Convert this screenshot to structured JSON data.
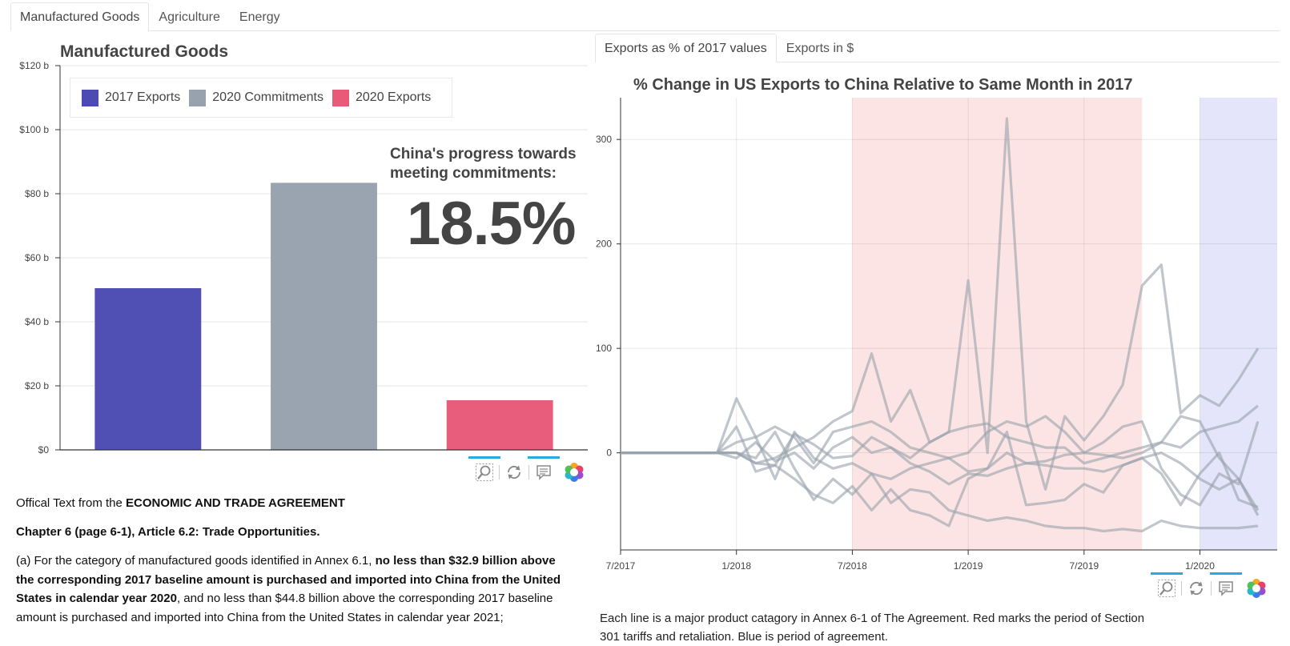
{
  "tabs": {
    "top": [
      "Manufactured Goods",
      "Agriculture",
      "Energy"
    ],
    "active_top": 0,
    "right": [
      "Exports as % of 2017 values",
      "Exports in $"
    ],
    "active_right": 0
  },
  "left_panel": {
    "progress_label": "China's progress towards meeting commitments:",
    "progress_value": "18.5%"
  },
  "text": {
    "p1_prefix": "Offical Text from the ",
    "p1_bold": "ECONOMIC AND TRADE AGREEMENT",
    "p2": "Chapter 6 (page 6-1), Article 6.2: Trade Opportunities.",
    "p3_a": "(a) For the category of manufactured goods identified in Annex 6.1, ",
    "p3_b": "no less than $32.9 billion above the corresponding 2017 baseline amount is purchased and imported into China from the United States in calendar year 2020",
    "p3_c": ", and no less than $44.8 billion above the corresponding 2017 baseline amount is purchased and imported into China from the United States in calendar year 2021;",
    "caption": "Each line is a major product catagory in Annex 6-1 of The Agreement. Red marks the period of Section 301 tariffs and retaliation. Blue is period of agreement."
  },
  "icons": {
    "zoom": "zoom-icon",
    "reset": "reset-icon",
    "comment": "comment-icon",
    "logo": "plot-logo-icon"
  },
  "colors": {
    "exports_2017": "#4b4bb3",
    "commitments_2020": "#97a2ae",
    "exports_2020": "#e85a78",
    "tariff_band": "#fde4e4",
    "agreement_band": "#e4e4fa",
    "line": "#9aa3ad",
    "toolbar_accent": "#26aae1"
  },
  "chart_data": [
    {
      "type": "bar",
      "title": "Manufactured Goods",
      "categories": [
        "2017 Exports",
        "2020 Commitments",
        "2020 Exports"
      ],
      "values": [
        50.5,
        83.4,
        15.5
      ],
      "value_unit": "billion $",
      "legend": [
        "2017 Exports",
        "2020 Commitments",
        "2020 Exports"
      ],
      "legend_position": "top-left",
      "y_ticks": [
        "$0",
        "$20 b",
        "$40 b",
        "$60 b",
        "$80 b",
        "$100 b",
        "$120 b"
      ],
      "y_tick_values": [
        0,
        20,
        40,
        60,
        80,
        100,
        120
      ],
      "ylim": [
        0,
        120
      ],
      "grid": true
    },
    {
      "type": "line",
      "title": "% Change in US Exports to China Relative to Same Month in 2017",
      "x_ticks": [
        "7/2017",
        "1/2018",
        "7/2018",
        "1/2019",
        "7/2019",
        "1/2020"
      ],
      "x_tick_months": [
        "2017-07",
        "2018-01",
        "2018-07",
        "2019-01",
        "2019-07",
        "2020-01"
      ],
      "x_range": [
        "2017-07",
        "2020-05"
      ],
      "y_ticks": [
        "0",
        "100",
        "200",
        "300"
      ],
      "y_tick_values": [
        0,
        100,
        200,
        300
      ],
      "ylim": [
        -93,
        340
      ],
      "grid": true,
      "shaded_regions": [
        {
          "from": "2018-07",
          "to": "2019-10",
          "color": "tariff"
        },
        {
          "from": "2020-01",
          "to": "2020-05",
          "color": "agreement"
        }
      ],
      "months": [
        "2017-07",
        "2017-08",
        "2017-09",
        "2017-10",
        "2017-11",
        "2017-12",
        "2018-01",
        "2018-02",
        "2018-03",
        "2018-04",
        "2018-05",
        "2018-06",
        "2018-07",
        "2018-08",
        "2018-09",
        "2018-10",
        "2018-11",
        "2018-12",
        "2019-01",
        "2019-02",
        "2019-03",
        "2019-04",
        "2019-05",
        "2019-06",
        "2019-07",
        "2019-08",
        "2019-09",
        "2019-10",
        "2019-11",
        "2019-12",
        "2020-01",
        "2020-02",
        "2020-03",
        "2020-04"
      ],
      "series": [
        {
          "values": [
            0,
            0,
            0,
            0,
            0,
            0,
            0,
            -10,
            -12,
            18,
            8,
            -5,
            -3,
            15,
            5,
            -10,
            -18,
            -30,
            -20,
            -22,
            -15,
            -10,
            -8,
            -2,
            0,
            -2,
            -5,
            0,
            10,
            5,
            20,
            25,
            30,
            45
          ]
        },
        {
          "values": [
            0,
            0,
            0,
            0,
            0,
            0,
            52,
            15,
            -25,
            20,
            -5,
            -15,
            -10,
            -20,
            -25,
            -15,
            -10,
            -5,
            -18,
            -15,
            0,
            -10,
            -12,
            -15,
            -15,
            -18,
            -12,
            -5,
            -20,
            -50,
            -20,
            0,
            -45,
            -52
          ]
        },
        {
          "values": [
            0,
            0,
            0,
            0,
            0,
            0,
            25,
            -18,
            -12,
            -25,
            -40,
            -48,
            -32,
            -55,
            -35,
            -55,
            -60,
            -70,
            -25,
            -15,
            20,
            -50,
            -48,
            -45,
            -30,
            -38,
            -12,
            -5,
            0,
            -10,
            -25,
            -35,
            -25,
            -55
          ]
        },
        {
          "values": [
            0,
            0,
            0,
            0,
            0,
            0,
            -5,
            10,
            -8,
            0,
            -15,
            5,
            15,
            0,
            5,
            -5,
            10,
            20,
            25,
            28,
            15,
            10,
            5,
            5,
            -10,
            -5,
            0,
            5,
            10,
            35,
            30,
            -5,
            -25,
            -60
          ]
        },
        {
          "values": [
            0,
            0,
            0,
            0,
            0,
            0,
            10,
            15,
            25,
            15,
            -10,
            20,
            25,
            30,
            20,
            5,
            0,
            -5,
            0,
            20,
            30,
            25,
            35,
            20,
            0,
            10,
            25,
            30,
            -15,
            -40,
            -50,
            -20,
            -30,
            30
          ]
        },
        {
          "values": [
            0,
            0,
            0,
            0,
            0,
            0,
            0,
            -5,
            20,
            -15,
            -45,
            -25,
            -40,
            -20,
            -48,
            -35,
            -38,
            -55,
            -60,
            -65,
            -62,
            -65,
            -70,
            -72,
            -72,
            -75,
            -73,
            -75,
            -65,
            -70,
            -72,
            -72,
            -72,
            -70
          ]
        },
        {
          "values": [
            0,
            0,
            0,
            0,
            0,
            0,
            0,
            -10,
            -5,
            5,
            15,
            30,
            40,
            95,
            30,
            60,
            10,
            20,
            165,
            0,
            320,
            30,
            -35,
            35,
            12,
            35,
            65,
            160,
            180,
            38,
            55,
            45,
            70,
            100
          ]
        }
      ]
    }
  ]
}
